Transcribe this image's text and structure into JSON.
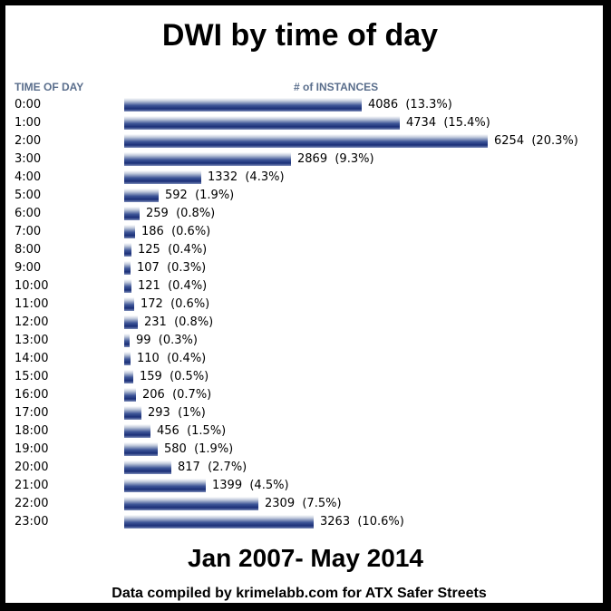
{
  "title": "DWI by time of day",
  "header_left": "TIME OF DAY",
  "header_right": "# of INSTANCES",
  "footer_date": "Jan 2007- May 2014",
  "footer_credit": "Data compiled by krimelabb.com for ATX Safer Streets",
  "chart_data": {
    "type": "bar",
    "orientation": "horizontal",
    "title": "DWI by time of day",
    "xlabel": "# of INSTANCES",
    "ylabel": "TIME OF DAY",
    "categories": [
      "0:00",
      "1:00",
      "2:00",
      "3:00",
      "4:00",
      "5:00",
      "6:00",
      "7:00",
      "8:00",
      "9:00",
      "10:00",
      "11:00",
      "12:00",
      "13:00",
      "14:00",
      "15:00",
      "16:00",
      "17:00",
      "18:00",
      "19:00",
      "20:00",
      "21:00",
      "22:00",
      "23:00"
    ],
    "values": [
      4086,
      4734,
      6254,
      2869,
      1332,
      592,
      259,
      186,
      125,
      107,
      121,
      172,
      231,
      99,
      110,
      159,
      206,
      293,
      456,
      580,
      817,
      1399,
      2309,
      3263
    ],
    "percent_labels": [
      "(13.3%)",
      "(15.4%)",
      "(20.3%)",
      "(9.3%)",
      "(4.3%)",
      "(1.9%)",
      "(0.8%)",
      "(0.6%)",
      "(0.4%)",
      "(0.3%)",
      "(0.4%)",
      "(0.6%)",
      "(0.8%)",
      "(0.3%)",
      "(0.4%)",
      "(0.5%)",
      "(0.7%)",
      "(1%)",
      "(1.5%)",
      "(1.9%)",
      "(2.7%)",
      "(4.5%)",
      "(7.5%)",
      "(10.6%)"
    ],
    "bar_color": "#2b4188"
  }
}
